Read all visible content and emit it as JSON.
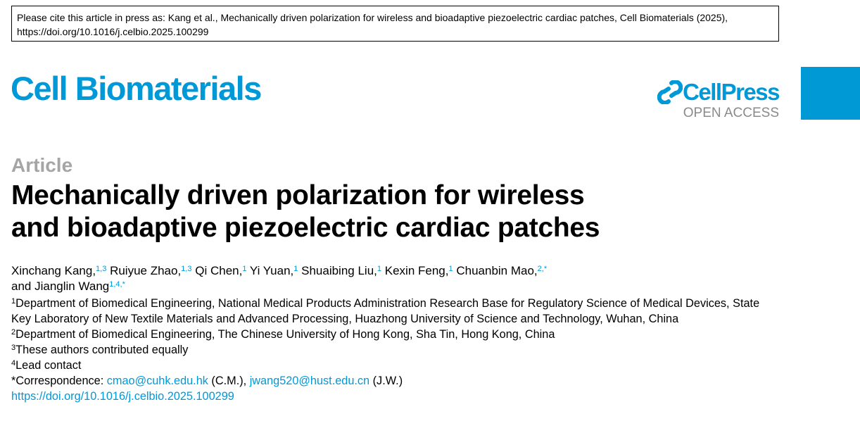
{
  "cite_notice": "Please cite this article in press as: Kang et al., Mechanically driven polarization for wireless and bioadaptive piezoelectric cardiac patches, Cell Biomaterials (2025), https://doi.org/10.1016/j.celbio.2025.100299",
  "journal": "Cell Biomaterials",
  "publisher": {
    "name": "CellPress",
    "tagline": "OPEN ACCESS",
    "logo_icon": "cellpress-logo-icon"
  },
  "brand_color": "#0099d8",
  "article_type": "Article",
  "title_lines": [
    "Mechanically driven polarization for wireless",
    "and bioadaptive piezoelectric cardiac patches"
  ],
  "authors": [
    {
      "name": "Xinchang Kang,",
      "sup": "1,3"
    },
    {
      "name": "Ruiyue Zhao,",
      "sup": "1,3"
    },
    {
      "name": "Qi Chen,",
      "sup": "1"
    },
    {
      "name": "Yi Yuan,",
      "sup": "1"
    },
    {
      "name": "Shuaibing Liu,",
      "sup": "1"
    },
    {
      "name": "Kexin Feng,",
      "sup": "1"
    },
    {
      "name": "Chuanbin Mao,",
      "sup": "2,*"
    },
    {
      "name": "and Jianglin Wang",
      "sup": "1,4,*"
    }
  ],
  "affiliations": [
    {
      "sup": "1",
      "text": "Department of Biomedical Engineering, National Medical Products Administration Research Base for Regulatory Science of Medical Devices, State Key Laboratory of New Textile Materials and Advanced Processing, Huazhong University of Science and Technology, Wuhan, China"
    },
    {
      "sup": "2",
      "text": "Department of Biomedical Engineering, The Chinese University of Hong Kong, Sha Tin, Hong Kong, China"
    },
    {
      "sup": "3",
      "text": "These authors contributed equally"
    },
    {
      "sup": "4",
      "text": "Lead contact"
    }
  ],
  "correspondence": {
    "label": "*Correspondence: ",
    "email1": "cmao@cuhk.edu.hk",
    "who1": " (C.M.), ",
    "email2": "jwang520@hust.edu.cn",
    "who2": " (J.W.)"
  },
  "doi": "https://doi.org/10.1016/j.celbio.2025.100299"
}
